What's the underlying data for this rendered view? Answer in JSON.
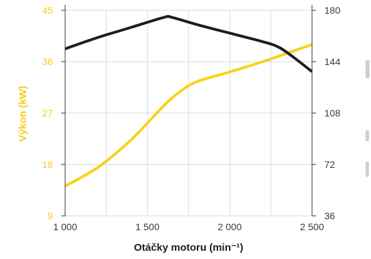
{
  "chart_data": {
    "type": "line",
    "xlabel": "Otáčky motoru (min⁻¹)",
    "ylabel_left": "Výkon (kW)",
    "ylabel_right": "",
    "x_ticks": [
      "1 000",
      "1 500",
      "2 000",
      "2 500"
    ],
    "x_tick_values": [
      1000,
      1500,
      2000,
      2500
    ],
    "y_left_ticks": [
      "9",
      "18",
      "27",
      "36",
      "45"
    ],
    "y_left_tick_values": [
      9,
      18,
      27,
      36,
      45
    ],
    "y_right_ticks": [
      "36",
      "72",
      "108",
      "144",
      "180"
    ],
    "y_right_tick_values": [
      36,
      72,
      108,
      144,
      180
    ],
    "xlim": [
      1000,
      2500
    ],
    "ylim_left": [
      9,
      45
    ],
    "ylim_right": [
      36,
      180
    ],
    "grid": "vertical",
    "series": [
      {
        "axis": "left",
        "color": "#f7d31e",
        "points": [
          [
            1000,
            14.2
          ],
          [
            1200,
            17.5
          ],
          [
            1400,
            22.3
          ],
          [
            1600,
            28.3
          ],
          [
            1700,
            30.8
          ],
          [
            1800,
            32.5
          ],
          [
            2000,
            34.2
          ],
          [
            2200,
            36.0
          ],
          [
            2400,
            38.0
          ],
          [
            2500,
            39.0
          ]
        ]
      },
      {
        "axis": "right",
        "color": "#1e1e1e",
        "points": [
          [
            1000,
            153
          ],
          [
            1200,
            161
          ],
          [
            1400,
            168
          ],
          [
            1600,
            175
          ],
          [
            1650,
            175
          ],
          [
            1800,
            170
          ],
          [
            2000,
            164
          ],
          [
            2200,
            158
          ],
          [
            2300,
            154
          ],
          [
            2400,
            146
          ],
          [
            2500,
            137
          ]
        ]
      }
    ]
  }
}
